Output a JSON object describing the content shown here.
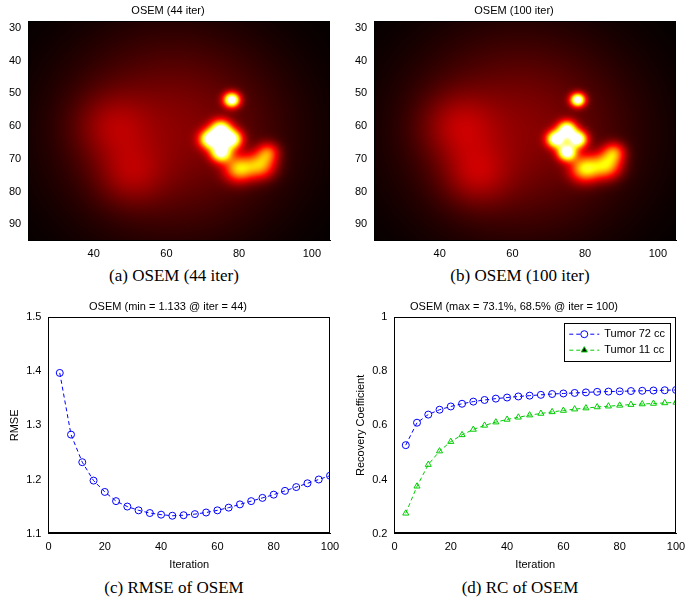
{
  "chart_data": [
    {
      "type": "image",
      "title": "OSEM (44 iter)",
      "caption": "(a) OSEM (44 iter)",
      "xlim": [
        22,
        105
      ],
      "xticks": [
        40,
        60,
        80,
        100
      ],
      "ylim": [
        28,
        95
      ],
      "yticks": [
        30,
        40,
        50,
        60,
        70,
        80,
        90
      ],
      "spots": [
        {
          "x": 62,
          "y": 62,
          "radius": 30,
          "intensity": 0.2
        },
        {
          "x": 45,
          "y": 60,
          "radius": 10,
          "intensity": 0.12
        },
        {
          "x": 50,
          "y": 75,
          "radius": 9,
          "intensity": 0.12
        },
        {
          "x": 72,
          "y": 64,
          "radius": 2.8,
          "intensity": 0.9
        },
        {
          "x": 78,
          "y": 64,
          "radius": 2.8,
          "intensity": 0.9
        },
        {
          "x": 75,
          "y": 61,
          "radius": 2.8,
          "intensity": 0.85
        },
        {
          "x": 75,
          "y": 68,
          "radius": 2.8,
          "intensity": 0.9
        },
        {
          "x": 80,
          "y": 73,
          "radius": 4,
          "intensity": 0.55
        },
        {
          "x": 86,
          "y": 72,
          "radius": 4,
          "intensity": 0.5
        },
        {
          "x": 88,
          "y": 68,
          "radius": 3,
          "intensity": 0.35
        },
        {
          "x": 78,
          "y": 52,
          "radius": 2.2,
          "intensity": 1
        }
      ]
    },
    {
      "type": "image",
      "title": "OSEM (100 iter)",
      "caption": "(b) OSEM (100 iter)",
      "xlim": [
        22,
        105
      ],
      "xticks": [
        40,
        60,
        80,
        100
      ],
      "ylim": [
        28,
        95
      ],
      "yticks": [
        30,
        40,
        50,
        60,
        70,
        80,
        90
      ],
      "spots": [
        {
          "x": 62,
          "y": 62,
          "radius": 30,
          "intensity": 0.2
        },
        {
          "x": 45,
          "y": 60,
          "radius": 10,
          "intensity": 0.14
        },
        {
          "x": 50,
          "y": 75,
          "radius": 9,
          "intensity": 0.14
        },
        {
          "x": 72,
          "y": 64,
          "radius": 2.5,
          "intensity": 0.95
        },
        {
          "x": 78,
          "y": 64,
          "radius": 2.5,
          "intensity": 0.95
        },
        {
          "x": 75,
          "y": 61,
          "radius": 2.5,
          "intensity": 0.9
        },
        {
          "x": 75,
          "y": 68,
          "radius": 2.5,
          "intensity": 0.95
        },
        {
          "x": 80,
          "y": 73,
          "radius": 4,
          "intensity": 0.6
        },
        {
          "x": 86,
          "y": 72,
          "radius": 4,
          "intensity": 0.55
        },
        {
          "x": 88,
          "y": 68,
          "radius": 3,
          "intensity": 0.4
        },
        {
          "x": 78,
          "y": 52,
          "radius": 2,
          "intensity": 1
        }
      ]
    },
    {
      "type": "line",
      "title": "OSEM (min = 1.133 @ iter = 44)",
      "caption": "(c) RMSE of OSEM",
      "x_label": "Iteration",
      "y_label": "RMSE",
      "xlim": [
        0,
        100
      ],
      "xticks": [
        0,
        20,
        40,
        60,
        80,
        100
      ],
      "ylim": [
        1.1,
        1.5
      ],
      "yticks": [
        1.1,
        1.2,
        1.3,
        1.4,
        1.5
      ],
      "x": [
        4,
        8,
        12,
        16,
        20,
        24,
        28,
        32,
        36,
        40,
        44,
        48,
        52,
        56,
        60,
        64,
        68,
        72,
        76,
        80,
        84,
        88,
        92,
        96,
        100
      ],
      "series": [
        {
          "color": "#0000ff",
          "marker": "circle",
          "line_style": "dashed",
          "values": [
            1.397,
            1.283,
            1.232,
            1.198,
            1.177,
            1.16,
            1.15,
            1.143,
            1.138,
            1.135,
            1.133,
            1.134,
            1.136,
            1.139,
            1.143,
            1.148,
            1.154,
            1.16,
            1.166,
            1.172,
            1.179,
            1.186,
            1.193,
            1.2,
            1.207
          ]
        }
      ]
    },
    {
      "type": "line",
      "title": "OSEM (max = 73.1%, 68.5% @ iter = 100)",
      "caption": "(d) RC of OSEM",
      "x_label": "Iteration",
      "y_label": "Recovery Coefficient",
      "xlim": [
        0,
        100
      ],
      "xticks": [
        0,
        20,
        40,
        60,
        80,
        100
      ],
      "ylim": [
        0.2,
        1
      ],
      "yticks": [
        0.2,
        0.4,
        0.6,
        0.8,
        1
      ],
      "legend": "upper right",
      "x": [
        4,
        8,
        12,
        16,
        20,
        24,
        28,
        32,
        36,
        40,
        44,
        48,
        52,
        56,
        60,
        64,
        68,
        72,
        76,
        80,
        84,
        88,
        92,
        96,
        100
      ],
      "series": [
        {
          "name": "Tumor 72 cc",
          "color": "#0000ff",
          "marker": "circle",
          "line_style": "dashed",
          "values": [
            0.527,
            0.61,
            0.64,
            0.658,
            0.67,
            0.68,
            0.688,
            0.694,
            0.699,
            0.703,
            0.707,
            0.71,
            0.713,
            0.716,
            0.718,
            0.72,
            0.722,
            0.724,
            0.725,
            0.726,
            0.727,
            0.728,
            0.729,
            0.73,
            0.731
          ]
        },
        {
          "name": "Tumor 11 cc",
          "color": "#00cc00",
          "marker": "triangle",
          "line_style": "dashed",
          "values": [
            0.275,
            0.375,
            0.455,
            0.505,
            0.54,
            0.565,
            0.585,
            0.6,
            0.612,
            0.622,
            0.63,
            0.638,
            0.644,
            0.65,
            0.655,
            0.66,
            0.664,
            0.668,
            0.671,
            0.674,
            0.677,
            0.679,
            0.681,
            0.683,
            0.685
          ]
        }
      ]
    }
  ]
}
